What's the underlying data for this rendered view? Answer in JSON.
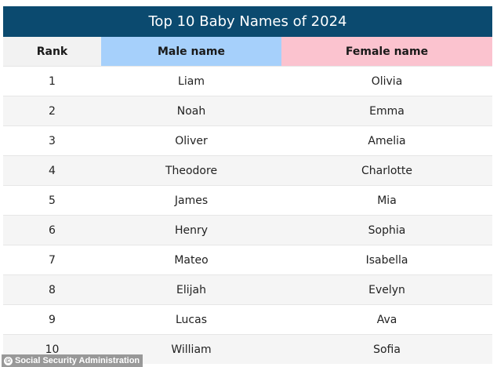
{
  "title": "Top 10 Baby Names of 2024",
  "headers": {
    "rank": "Rank",
    "male": "Male name",
    "female": "Female name"
  },
  "rows": [
    {
      "rank": "1",
      "male": "Liam",
      "female": "Olivia"
    },
    {
      "rank": "2",
      "male": "Noah",
      "female": "Emma"
    },
    {
      "rank": "3",
      "male": "Oliver",
      "female": "Amelia"
    },
    {
      "rank": "4",
      "male": "Theodore",
      "female": "Charlotte"
    },
    {
      "rank": "5",
      "male": "James",
      "female": "Mia"
    },
    {
      "rank": "6",
      "male": "Henry",
      "female": "Sophia"
    },
    {
      "rank": "7",
      "male": "Mateo",
      "female": "Isabella"
    },
    {
      "rank": "8",
      "male": "Elijah",
      "female": "Evelyn"
    },
    {
      "rank": "9",
      "male": "Lucas",
      "female": "Ava"
    },
    {
      "rank": "10",
      "male": "William",
      "female": "Sofia"
    }
  ],
  "credit": {
    "symbol": "©",
    "text": "Social Security Administration"
  },
  "colors": {
    "title_bg": "#0b4a6f",
    "male_header_bg": "#a6d0fb",
    "female_header_bg": "#fbc3cf",
    "rank_header_bg": "#f2f2f2"
  }
}
